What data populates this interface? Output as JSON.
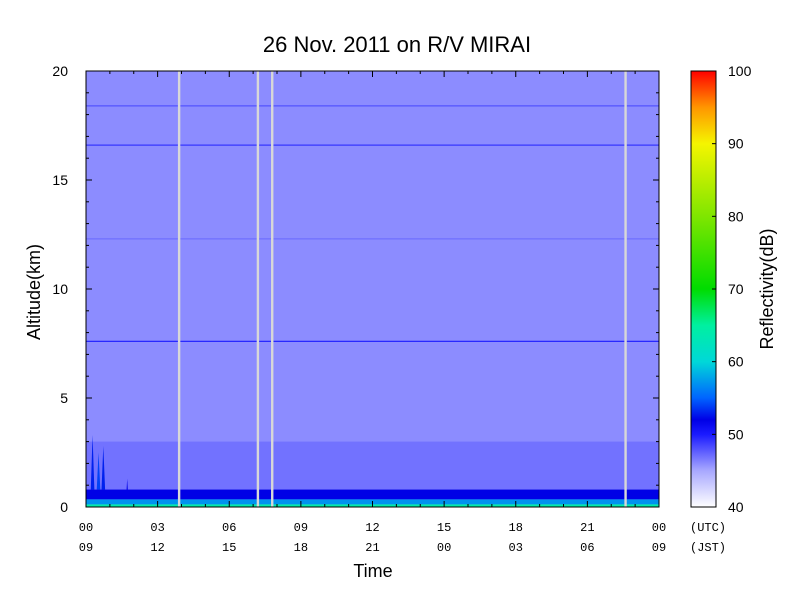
{
  "chart_data": {
    "type": "heatmap",
    "title": "26 Nov. 2011  on R/V MIRAI",
    "xlabel": "Time",
    "ylabel": "Altitude(km)",
    "colorbar_label": "Reflectivity(dB)",
    "xlim": [
      0,
      24
    ],
    "ylim": [
      0,
      20
    ],
    "clim": [
      40,
      100
    ],
    "x_ticks_utc": [
      "00",
      "03",
      "06",
      "09",
      "12",
      "15",
      "18",
      "21",
      "00"
    ],
    "x_ticks_jst": [
      "09",
      "12",
      "15",
      "18",
      "21",
      "00",
      "03",
      "06",
      "09"
    ],
    "x_tick_hours": [
      0,
      3,
      6,
      9,
      12,
      15,
      18,
      21,
      24
    ],
    "x_unit_utc": "(UTC)",
    "x_unit_jst": "(JST)",
    "y_ticks": [
      0,
      5,
      10,
      15,
      20
    ],
    "colorbar_ticks": [
      40,
      50,
      60,
      70,
      80,
      90,
      100
    ],
    "background_reflectivity_db": 46,
    "data_gaps_hours": [
      3.9,
      7.2,
      7.8,
      22.6
    ],
    "horizontal_bands": [
      {
        "altitude_km": 18.4,
        "reflectivity_db": 48
      },
      {
        "altitude_km": 16.6,
        "reflectivity_db": 49
      },
      {
        "altitude_km": 12.3,
        "reflectivity_db": 47
      },
      {
        "altitude_km": 7.6,
        "reflectivity_db": 50
      }
    ],
    "surface_layers": [
      {
        "from_km": 0.35,
        "to_km": 0.8,
        "reflectivity_db": 52
      },
      {
        "from_km": 0.12,
        "to_km": 0.35,
        "reflectivity_db": 57
      },
      {
        "from_km": 0.0,
        "to_km": 0.12,
        "reflectivity_db": 64
      }
    ],
    "echoes": [
      {
        "start_h": 0.2,
        "end_h": 0.35,
        "top_km": 3.3,
        "reflectivity_db": 53
      },
      {
        "start_h": 0.45,
        "end_h": 0.6,
        "top_km": 2.5,
        "reflectivity_db": 54
      },
      {
        "start_h": 0.65,
        "end_h": 0.8,
        "top_km": 2.8,
        "reflectivity_db": 53
      },
      {
        "start_h": 1.7,
        "end_h": 1.75,
        "top_km": 1.3,
        "reflectivity_db": 52
      }
    ],
    "colormap": [
      {
        "db": 40,
        "color": "#ffffff"
      },
      {
        "db": 45,
        "color": "#a8a8ff"
      },
      {
        "db": 50,
        "color": "#1a1aff"
      },
      {
        "db": 52,
        "color": "#0000e6"
      },
      {
        "db": 55,
        "color": "#0064ff"
      },
      {
        "db": 60,
        "color": "#00d8d8"
      },
      {
        "db": 65,
        "color": "#00f0a0"
      },
      {
        "db": 70,
        "color": "#00dc00"
      },
      {
        "db": 80,
        "color": "#7fe600"
      },
      {
        "db": 90,
        "color": "#f5f500"
      },
      {
        "db": 95,
        "color": "#ff9600"
      },
      {
        "db": 100,
        "color": "#ff0000"
      }
    ],
    "gap_color": "#d8d8d8"
  }
}
